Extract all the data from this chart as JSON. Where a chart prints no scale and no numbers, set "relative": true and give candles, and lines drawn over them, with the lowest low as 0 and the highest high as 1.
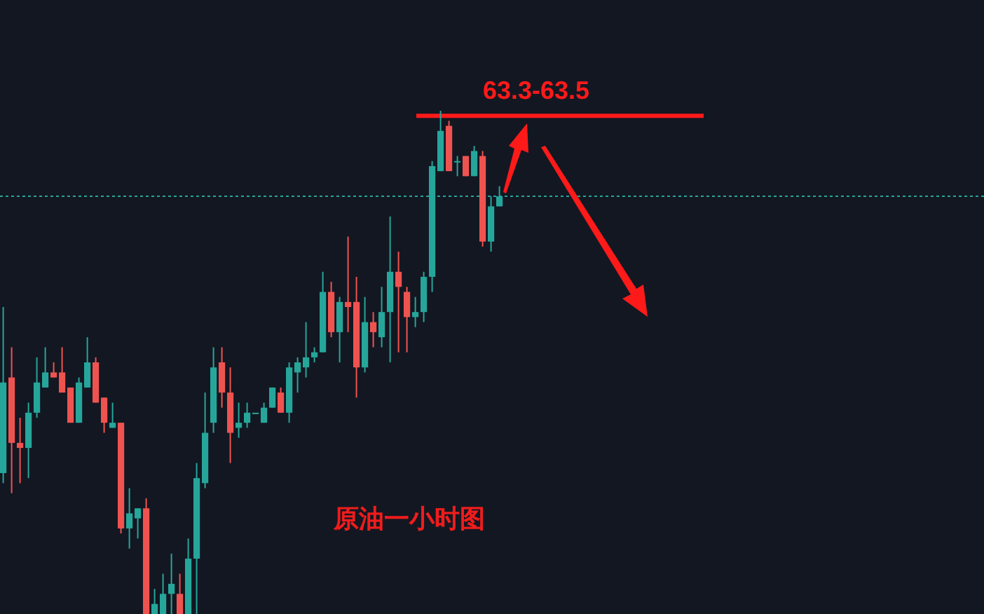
{
  "chart_data": {
    "type": "candlestick",
    "title": "原油一小时图",
    "relative": true,
    "annotations": [
      "63.3-63.5"
    ],
    "categories": [
      null,
      null,
      null,
      null,
      null,
      null,
      null,
      null,
      null,
      null,
      null,
      null,
      null,
      null,
      null,
      null,
      null,
      null,
      null,
      null,
      null,
      null,
      null,
      null,
      null,
      null,
      null,
      null,
      null,
      null,
      null,
      null,
      null,
      null,
      null,
      null,
      null,
      null,
      null,
      null,
      null,
      null,
      null,
      null,
      null,
      null,
      null,
      null,
      null,
      null,
      null,
      null,
      null,
      null,
      null,
      null,
      null,
      null,
      null,
      null
    ],
    "ohlc": [
      [
        0.28,
        0.61,
        0.26,
        0.46
      ],
      [
        0.47,
        0.53,
        0.24,
        0.34
      ],
      [
        0.34,
        0.39,
        0.26,
        0.33
      ],
      [
        0.33,
        0.42,
        0.27,
        0.4
      ],
      [
        0.4,
        0.51,
        0.39,
        0.46
      ],
      [
        0.45,
        0.53,
        0.45,
        0.48
      ],
      [
        0.48,
        0.5,
        0.47,
        0.47
      ],
      [
        0.48,
        0.53,
        0.44,
        0.44
      ],
      [
        0.45,
        0.45,
        0.38,
        0.38
      ],
      [
        0.38,
        0.47,
        0.38,
        0.46
      ],
      [
        0.45,
        0.55,
        0.45,
        0.5
      ],
      [
        0.5,
        0.51,
        0.42,
        0.42
      ],
      [
        0.43,
        0.43,
        0.36,
        0.38
      ],
      [
        0.37,
        0.42,
        0.37,
        0.38
      ],
      [
        0.38,
        0.38,
        0.16,
        0.17
      ],
      [
        0.17,
        0.25,
        0.13,
        0.2
      ],
      [
        0.19,
        0.21,
        0.15,
        0.21
      ],
      [
        0.21,
        0.23,
        0,
        0
      ],
      [
        0,
        0.05,
        0,
        0.02
      ],
      [
        0,
        0.08,
        0,
        0.04
      ],
      [
        0.04,
        0.12,
        0,
        0.06
      ],
      [
        0.04,
        0.08,
        0,
        0
      ],
      [
        0,
        0.15,
        0,
        0.11
      ],
      [
        0.11,
        0.3,
        0,
        0.27
      ],
      [
        0.26,
        0.44,
        0.25,
        0.36
      ],
      [
        0.38,
        0.53,
        0.36,
        0.49
      ],
      [
        0.5,
        0.53,
        0.41,
        0.44
      ],
      [
        0.44,
        0.49,
        0.3,
        0.36
      ],
      [
        0.37,
        0.42,
        0.35,
        0.38
      ],
      [
        0.38,
        0.42,
        0.37,
        0.4
      ],
      [
        0.4,
        0.4,
        0.4,
        0.4
      ],
      [
        0.38,
        0.42,
        0.38,
        0.41
      ],
      [
        0.41,
        0.45,
        0.41,
        0.45
      ],
      [
        0.44,
        0.45,
        0.4,
        0.4
      ],
      [
        0.4,
        0.5,
        0.38,
        0.49
      ],
      [
        0.48,
        0.51,
        0.44,
        0.5
      ],
      [
        0.49,
        0.58,
        0.47,
        0.51
      ],
      [
        0.51,
        0.53,
        0.5,
        0.52
      ],
      [
        0.52,
        0.68,
        0.52,
        0.64
      ],
      [
        0.64,
        0.66,
        0.55,
        0.56
      ],
      [
        0.56,
        0.63,
        0.5,
        0.62
      ],
      [
        0.62,
        0.75,
        0.56,
        0.61
      ],
      [
        0.62,
        0.67,
        0.43,
        0.49
      ],
      [
        0.49,
        0.63,
        0.48,
        0.58
      ],
      [
        0.58,
        0.6,
        0.53,
        0.56
      ],
      [
        0.55,
        0.65,
        0.53,
        0.6
      ],
      [
        0.6,
        0.79,
        0.5,
        0.68
      ],
      [
        0.68,
        0.72,
        0.52,
        0.65
      ],
      [
        0.64,
        0.65,
        0.52,
        0.59
      ],
      [
        0.59,
        0.63,
        0.57,
        0.6
      ],
      [
        0.6,
        0.68,
        0.58,
        0.67
      ],
      [
        0.67,
        0.9,
        0.64,
        0.89
      ],
      [
        0.88,
        1,
        0.88,
        0.96
      ],
      [
        0.97,
        0.98,
        0.88,
        0.88
      ],
      [
        0.9,
        0.91,
        0.87,
        0.9
      ],
      [
        0.91,
        0.91,
        0.87,
        0.87
      ],
      [
        0.87,
        0.93,
        0.87,
        0.92
      ],
      [
        0.91,
        0.92,
        0.73,
        0.74
      ],
      [
        0.74,
        0.83,
        0.72,
        0.81
      ],
      [
        0.81,
        0.85,
        0.81,
        0.83
      ]
    ],
    "colors": [
      "#26a69a",
      "#ef5350",
      "#ef5350",
      "#26a69a",
      "#26a69a",
      "#26a69a",
      "#ef5350",
      "#ef5350",
      "#ef5350",
      "#26a69a",
      "#26a69a",
      "#ef5350",
      "#ef5350",
      "#26a69a",
      "#ef5350",
      "#26a69a",
      "#26a69a",
      "#ef5350",
      "#26a69a",
      "#26a69a",
      "#26a69a",
      "#ef5350",
      "#26a69a",
      "#26a69a",
      "#26a69a",
      "#26a69a",
      "#ef5350",
      "#ef5350",
      "#26a69a",
      "#26a69a",
      "#26a69a",
      "#26a69a",
      "#26a69a",
      "#ef5350",
      "#26a69a",
      "#26a69a",
      "#26a69a",
      "#26a69a",
      "#26a69a",
      "#ef5350",
      "#26a69a",
      "#ef5350",
      "#ef5350",
      "#26a69a",
      "#ef5350",
      "#26a69a",
      "#26a69a",
      "#ef5350",
      "#ef5350",
      "#26a69a",
      "#26a69a",
      "#26a69a",
      "#26a69a",
      "#ef5350",
      "#26a69a",
      "#ef5350",
      "#26a69a",
      "#ef5350",
      "#26a69a",
      "#26a69a"
    ],
    "ref_lines": [
      {
        "axis": "y",
        "value": 0.99,
        "label": null,
        "color": "#ff1a1a",
        "line_style": "solid"
      },
      {
        "axis": "y",
        "value": 0.83,
        "label": null,
        "color": "#26a69a",
        "line_style": "dotted"
      }
    ]
  }
}
